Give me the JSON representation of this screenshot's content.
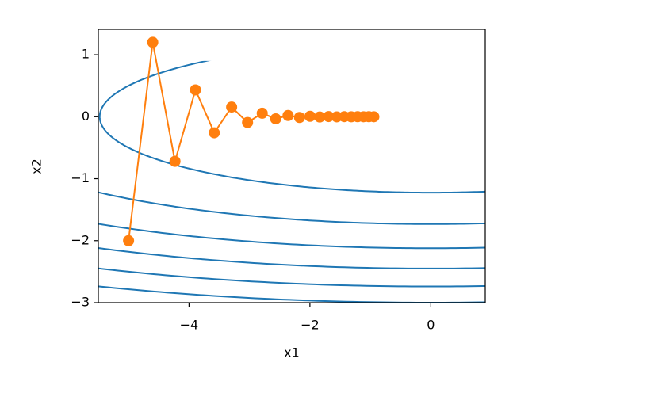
{
  "chart_data": {
    "type": "contour",
    "x_label": "x1",
    "y_label": "x2",
    "xlim": [
      -5.5,
      0.9
    ],
    "ylim": [
      -3,
      1.41
    ],
    "xticks": [
      {
        "value": -4,
        "label": "−4"
      },
      {
        "value": -2,
        "label": "−2"
      },
      0
    ],
    "yticks": [
      {
        "value": -3,
        "label": "−3"
      },
      {
        "value": -2,
        "label": "−2"
      },
      {
        "value": -1,
        "label": "−1"
      },
      0,
      1
    ],
    "contour_levels": [
      3,
      6,
      9,
      12,
      15,
      18
    ],
    "contour_color": "#1f77b4",
    "contour_domain": {
      "x": [
        -5.5,
        0.9
      ],
      "y": [
        -3,
        0.9
      ]
    },
    "series": [
      {
        "color": "#ff7f0e",
        "x": [
          -5,
          -4.6,
          -4.232,
          -3.893,
          -3.582,
          -3.295,
          -3.032,
          -2.789,
          -2.566,
          -2.361,
          -2.172,
          -1.998,
          -1.838,
          -1.691,
          -1.556,
          -1.431,
          -1.317,
          -1.211,
          -1.114,
          -1.025,
          -0.943
        ],
        "values": [
          -2,
          1.2,
          -0.72,
          0.432,
          -0.259,
          0.156,
          -0.093,
          0.056,
          -0.034,
          0.02,
          -0.012,
          0.007,
          -0.004,
          0.003,
          -0.002,
          0.001,
          -0.001,
          0.0003,
          -0.0002,
          0.0001,
          -0.0001
        ]
      }
    ]
  }
}
